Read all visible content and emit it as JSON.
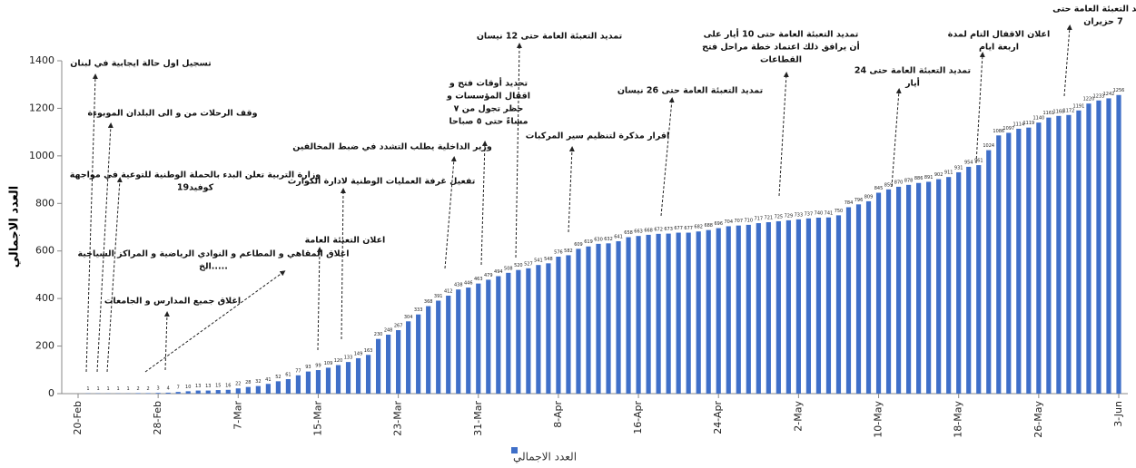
{
  "chart_data": {
    "type": "bar",
    "y_label": "العدد الاجمالي",
    "legend": "العدد الاجمالي",
    "color": "#3f6fc8",
    "ylim": [
      0,
      1400
    ],
    "yticks": [
      0,
      200,
      400,
      600,
      800,
      1000,
      1200,
      1400
    ],
    "categories": [
      "20-Feb",
      null,
      null,
      null,
      null,
      null,
      null,
      null,
      "28-Feb",
      null,
      null,
      null,
      null,
      null,
      null,
      null,
      "7-Mar",
      null,
      null,
      null,
      null,
      null,
      null,
      null,
      "15-Mar",
      null,
      null,
      null,
      null,
      null,
      null,
      null,
      "23-Mar",
      null,
      null,
      null,
      null,
      null,
      null,
      null,
      "31-Mar",
      null,
      null,
      null,
      null,
      null,
      null,
      null,
      "8-Apr",
      null,
      null,
      null,
      null,
      null,
      null,
      null,
      "16-Apr",
      null,
      null,
      null,
      null,
      null,
      null,
      null,
      "24-Apr",
      null,
      null,
      null,
      null,
      null,
      null,
      null,
      "2-May",
      null,
      null,
      null,
      null,
      null,
      null,
      null,
      "10-May",
      null,
      null,
      null,
      null,
      null,
      null,
      null,
      "18-May",
      null,
      null,
      null,
      null,
      null,
      null,
      null,
      "26-May",
      null,
      null,
      null,
      null,
      null,
      null,
      null,
      "3-Jun"
    ],
    "values": [
      null,
      1,
      1,
      1,
      1,
      1,
      2,
      2,
      3,
      4,
      7,
      10,
      13,
      13,
      15,
      16,
      22,
      28,
      32,
      41,
      52,
      61,
      77,
      93,
      99,
      109,
      120,
      133,
      149,
      163,
      230,
      248,
      267,
      304,
      333,
      368,
      391,
      412,
      438,
      446,
      463,
      479,
      494,
      508,
      520,
      527,
      541,
      548,
      576,
      582,
      609,
      619,
      630,
      632,
      641,
      658,
      663,
      668,
      672,
      673,
      677,
      677,
      682,
      688,
      696,
      704,
      707,
      710,
      717,
      721,
      725,
      729,
      733,
      737,
      740,
      741,
      750,
      784,
      796,
      809,
      845,
      859,
      870,
      878,
      886,
      891,
      902,
      911,
      931,
      954,
      961,
      1024,
      1086,
      1097,
      1114,
      1119,
      1140,
      1161,
      1168,
      1172,
      1191,
      1220,
      1233,
      1242,
      1256
    ],
    "annotations": [
      [
        "تسجيل اول حالة ايجابية في لبنان"
      ],
      [
        "وقف الرحلات من و الى البلدان الموبوءة"
      ],
      [
        "وزارة التربية تعلن البدء بالحملة الوطنية للتوعية في مواجهة",
        "كوفيد19"
      ],
      [
        "اغلاق المقاهي و المطاعم و النوادي الرياضية و المراكز السياحية",
        ".....الخ"
      ],
      [
        "اغلاق جميع المدارس و الجامعات"
      ],
      [
        "اعلان التعبئة العامة"
      ],
      [
        "تفعيل غرفة العمليات الوطنية لادارة الكوارث"
      ],
      [
        "وزير الداخلية يطلب التشدد في ضبط المخالفين"
      ],
      [
        "تحديد أوقات فتح و",
        "اقفال المؤسسات و",
        "حظر تجول من ٧",
        "مساءً حتى ٥ صباحا"
      ],
      [
        "تمديد التعبئة العامة حتى 12 نيسان"
      ],
      [
        "اقرار مذكرة لتنظيم سير المركبات"
      ],
      [
        "تمديد التعبئة العامة حتى 26 نيسان"
      ],
      [
        "تمديد التعبئة العامة حتى 10 أيار على",
        "أن يرافق ذلك اعتماد خطة مراحل فتح",
        "القطاعات"
      ],
      [
        "تمديد التعبئة العامة حتى 24",
        "أيار"
      ],
      [
        "اعلان الاقفال التام لمدة",
        "اربعة ايام"
      ],
      [
        "تمديد التعبئة العامة حتى",
        "7 حزيران"
      ]
    ]
  }
}
